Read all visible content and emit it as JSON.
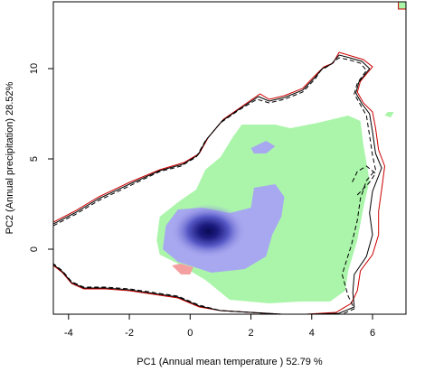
{
  "chart_data": {
    "type": "heatmap",
    "title": "",
    "xlabel": "PC1 (Annual mean temperature ) 52.79 %",
    "ylabel": "PC2 (Annual precipitation) 28.52%",
    "xlim": [
      -4.5,
      7.1
    ],
    "ylim": [
      -3.6,
      13.7
    ],
    "x_ticks": [
      -4,
      -2,
      0,
      2,
      4,
      6
    ],
    "y_ticks": [
      0,
      5,
      10
    ],
    "x_tick_labels": [
      "-4",
      "-2",
      "0",
      "2",
      "4",
      "6"
    ],
    "y_tick_labels": [
      "0",
      "5",
      "10"
    ],
    "grid": false,
    "legend": "none",
    "colors": {
      "overlap": "#aaf5aa",
      "niche_a_only": "#f5a0a0",
      "density_low": "#a8a8f0",
      "density_high": "#0a0a55",
      "contour_a": "#cc0000",
      "contour_b": "#000000"
    },
    "regions": {
      "overlap": [
        [
          -1.1,
          0.5
        ],
        [
          -1.0,
          1.8
        ],
        [
          -0.4,
          2.6
        ],
        [
          0.2,
          3.3
        ],
        [
          0.5,
          4.4
        ],
        [
          1.0,
          5.1
        ],
        [
          1.4,
          6.2
        ],
        [
          1.7,
          6.9
        ],
        [
          2.2,
          6.9
        ],
        [
          2.8,
          6.9
        ],
        [
          3.3,
          6.7
        ],
        [
          4.2,
          7.0
        ],
        [
          5.2,
          7.4
        ],
        [
          5.6,
          7.1
        ],
        [
          5.7,
          5.8
        ],
        [
          5.8,
          4.8
        ],
        [
          5.9,
          3.8
        ],
        [
          5.7,
          2.3
        ],
        [
          5.5,
          0.5
        ],
        [
          5.2,
          -1.2
        ],
        [
          5.1,
          -2.3
        ],
        [
          4.6,
          -2.9
        ],
        [
          3.6,
          -2.9
        ],
        [
          2.6,
          -3.0
        ],
        [
          1.3,
          -2.8
        ],
        [
          0.5,
          -1.7
        ],
        [
          -0.4,
          -0.8
        ],
        [
          -1.0,
          -0.3
        ]
      ],
      "overlap_small": [
        [
          6.4,
          7.4
        ],
        [
          6.5,
          7.6
        ],
        [
          6.7,
          7.6
        ],
        [
          6.6,
          7.3
        ]
      ],
      "niche_a_only": [
        [
          -0.6,
          -0.9
        ],
        [
          -0.3,
          -0.8
        ],
        [
          0.1,
          -1.0
        ],
        [
          0.0,
          -1.4
        ],
        [
          -0.3,
          -1.4
        ]
      ],
      "density_low": [
        [
          -0.8,
          1.3
        ],
        [
          -0.4,
          2.2
        ],
        [
          0.4,
          2.3
        ],
        [
          1.3,
          2.0
        ],
        [
          2.0,
          2.3
        ],
        [
          2.1,
          3.4
        ],
        [
          2.8,
          3.6
        ],
        [
          3.1,
          2.9
        ],
        [
          3.0,
          1.8
        ],
        [
          2.7,
          0.8
        ],
        [
          2.5,
          -0.4
        ],
        [
          1.8,
          -1.1
        ],
        [
          0.7,
          -1.3
        ],
        [
          -0.4,
          -0.7
        ],
        [
          -0.9,
          0.0
        ]
      ],
      "density_low_spot": [
        [
          2.0,
          5.6
        ],
        [
          2.5,
          6.0
        ],
        [
          2.8,
          5.7
        ],
        [
          2.5,
          5.3
        ],
        [
          2.1,
          5.3
        ]
      ],
      "density_peak": [
        0.6,
        1.0
      ]
    },
    "contours": [
      {
        "style": "solid",
        "color": "#cc0000",
        "points": [
          [
            -4.5,
            1.5
          ],
          [
            -3.8,
            2.1
          ],
          [
            -3.0,
            2.9
          ],
          [
            -2.0,
            3.7
          ],
          [
            -1.0,
            4.4
          ],
          [
            -0.2,
            4.8
          ],
          [
            0.3,
            5.3
          ],
          [
            0.6,
            6.2
          ],
          [
            1.1,
            7.2
          ],
          [
            1.7,
            7.9
          ],
          [
            2.3,
            8.6
          ],
          [
            2.6,
            8.3
          ],
          [
            3.1,
            8.5
          ],
          [
            3.7,
            8.9
          ],
          [
            4.1,
            9.6
          ],
          [
            4.4,
            10.1
          ],
          [
            4.7,
            10.3
          ],
          [
            4.9,
            10.9
          ],
          [
            5.3,
            10.7
          ],
          [
            5.7,
            10.5
          ],
          [
            6.0,
            10.1
          ],
          [
            5.6,
            9.3
          ],
          [
            5.5,
            8.7
          ],
          [
            5.7,
            8.1
          ],
          [
            6.0,
            7.6
          ],
          [
            6.1,
            6.7
          ],
          [
            6.2,
            5.5
          ],
          [
            6.4,
            4.6
          ],
          [
            6.3,
            3.3
          ],
          [
            6.2,
            2.1
          ],
          [
            6.2,
            0.8
          ],
          [
            6.0,
            -0.3
          ],
          [
            5.6,
            -1.2
          ],
          [
            5.5,
            -2.3
          ],
          [
            5.3,
            -3.0
          ],
          [
            4.8,
            -3.5
          ],
          [
            3.8,
            -3.6
          ],
          [
            3.0,
            -3.6
          ],
          [
            2.0,
            -3.5
          ],
          [
            1.0,
            -3.4
          ],
          [
            0.3,
            -3.2
          ],
          [
            -0.4,
            -2.7
          ],
          [
            -1.2,
            -2.5
          ],
          [
            -2.0,
            -2.3
          ],
          [
            -2.8,
            -2.2
          ],
          [
            -3.5,
            -2.2
          ],
          [
            -3.9,
            -1.9
          ],
          [
            -4.2,
            -1.3
          ],
          [
            -4.5,
            -0.9
          ]
        ]
      },
      {
        "style": "dashed",
        "color": "#000000",
        "points": [
          [
            -4.5,
            1.3
          ],
          [
            -3.8,
            1.9
          ],
          [
            -3.0,
            2.7
          ],
          [
            -2.0,
            3.5
          ],
          [
            -1.0,
            4.3
          ],
          [
            -0.3,
            4.6
          ],
          [
            0.2,
            5.1
          ],
          [
            0.5,
            6.0
          ],
          [
            1.0,
            7.0
          ],
          [
            1.6,
            7.7
          ],
          [
            2.2,
            8.3
          ],
          [
            2.6,
            8.1
          ],
          [
            3.1,
            8.3
          ],
          [
            3.7,
            8.7
          ],
          [
            4.1,
            9.4
          ],
          [
            4.3,
            9.9
          ],
          [
            4.6,
            10.2
          ],
          [
            4.9,
            10.6
          ],
          [
            5.2,
            10.5
          ],
          [
            5.6,
            10.3
          ],
          [
            5.8,
            9.9
          ],
          [
            5.5,
            9.2
          ],
          [
            5.4,
            8.6
          ],
          [
            5.6,
            8.0
          ],
          [
            5.8,
            7.4
          ],
          [
            5.9,
            6.3
          ],
          [
            6.0,
            5.2
          ],
          [
            6.1,
            4.4
          ],
          [
            5.8,
            3.8
          ],
          [
            5.6,
            2.8
          ],
          [
            5.5,
            1.6
          ],
          [
            5.3,
            0.2
          ],
          [
            5.0,
            -1.4
          ],
          [
            5.2,
            -2.6
          ],
          [
            5.4,
            -3.3
          ],
          [
            5.0,
            -3.6
          ],
          [
            4.0,
            -3.6
          ],
          [
            3.0,
            -3.6
          ],
          [
            2.0,
            -3.5
          ],
          [
            1.0,
            -3.4
          ],
          [
            0.3,
            -3.1
          ],
          [
            -0.4,
            -2.6
          ],
          [
            -1.2,
            -2.4
          ],
          [
            -2.0,
            -2.2
          ],
          [
            -2.8,
            -2.1
          ],
          [
            -3.5,
            -2.1
          ],
          [
            -3.9,
            -1.8
          ],
          [
            -4.2,
            -1.2
          ],
          [
            -4.5,
            -0.8
          ]
        ]
      },
      {
        "style": "solid",
        "color": "#000000",
        "points": [
          [
            -4.5,
            1.4
          ],
          [
            -3.8,
            2.0
          ],
          [
            -3.0,
            2.8
          ],
          [
            -2.0,
            3.6
          ],
          [
            -1.0,
            4.35
          ],
          [
            -0.25,
            4.7
          ],
          [
            0.25,
            5.2
          ],
          [
            0.55,
            6.1
          ],
          [
            1.05,
            7.1
          ],
          [
            1.65,
            7.8
          ],
          [
            2.25,
            8.45
          ],
          [
            2.6,
            8.2
          ],
          [
            3.1,
            8.4
          ],
          [
            3.7,
            8.8
          ],
          [
            4.1,
            9.5
          ],
          [
            4.35,
            10.0
          ],
          [
            4.65,
            10.25
          ],
          [
            4.9,
            10.75
          ],
          [
            5.25,
            10.6
          ],
          [
            5.65,
            10.4
          ],
          [
            5.9,
            10.0
          ],
          [
            5.55,
            9.25
          ],
          [
            5.45,
            8.65
          ],
          [
            5.65,
            8.05
          ],
          [
            5.9,
            7.5
          ],
          [
            6.0,
            6.5
          ],
          [
            6.1,
            5.3
          ],
          [
            6.3,
            4.5
          ],
          [
            6.0,
            3.2
          ],
          [
            5.9,
            2.0
          ],
          [
            6.0,
            0.8
          ],
          [
            5.8,
            -0.4
          ],
          [
            5.4,
            -1.4
          ],
          [
            5.35,
            -2.4
          ],
          [
            5.4,
            -3.2
          ],
          [
            4.9,
            -3.55
          ],
          [
            3.9,
            -3.6
          ],
          [
            3.0,
            -3.6
          ],
          [
            2.0,
            -3.5
          ],
          [
            1.0,
            -3.4
          ],
          [
            0.3,
            -3.15
          ],
          [
            -0.4,
            -2.65
          ],
          [
            -1.2,
            -2.45
          ],
          [
            -2.0,
            -2.25
          ],
          [
            -2.8,
            -2.15
          ],
          [
            -3.5,
            -2.15
          ],
          [
            -3.9,
            -1.85
          ],
          [
            -4.2,
            -1.25
          ],
          [
            -4.5,
            -0.85
          ]
        ]
      },
      {
        "style": "dashed",
        "color": "#000000",
        "points": [
          [
            5.5,
            3.0
          ],
          [
            5.9,
            3.7
          ],
          [
            6.1,
            4.2
          ],
          [
            5.8,
            4.6
          ],
          [
            5.5,
            4.3
          ],
          [
            5.3,
            3.6
          ]
        ]
      }
    ],
    "corner_patch": [
      [
        6.85,
        13.3
      ],
      [
        7.1,
        13.3
      ],
      [
        7.1,
        13.7
      ],
      [
        6.85,
        13.7
      ]
    ]
  }
}
